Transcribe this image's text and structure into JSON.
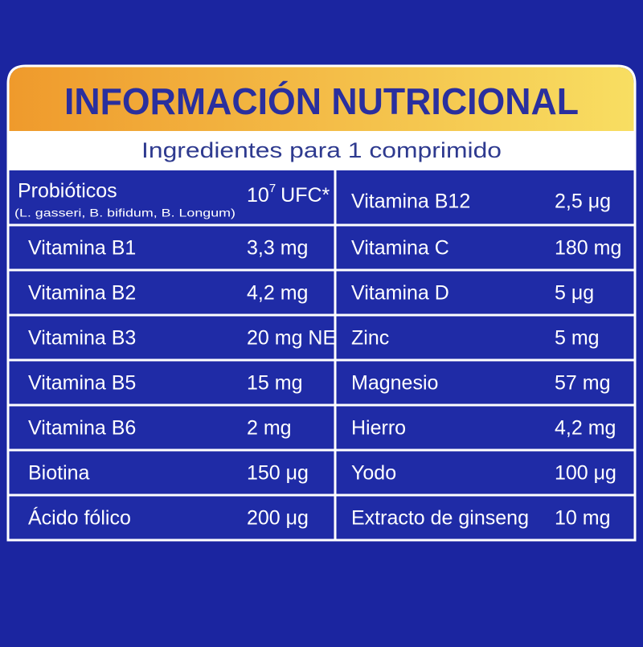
{
  "header": {
    "title": "INFORMACIÓN NUTRICIONAL",
    "subtitle": "Ingredientes para 1 comprimido"
  },
  "table": {
    "rows": [
      {
        "left": {
          "name": "Probióticos",
          "note": "(L. gasseri, B. bifidum, B. Longum)",
          "value": "10",
          "exponent": "7",
          "unit": "UFC*"
        },
        "right": {
          "name": "Vitamina B12",
          "value": "2,5 μg"
        }
      },
      {
        "left": {
          "name": "Vitamina B1",
          "value": "3,3 mg"
        },
        "right": {
          "name": "Vitamina C",
          "value": "180 mg"
        }
      },
      {
        "left": {
          "name": "Vitamina B2",
          "value": "4,2 mg"
        },
        "right": {
          "name": "Vitamina D",
          "value": "5 μg"
        }
      },
      {
        "left": {
          "name": "Vitamina B3",
          "value": "20 mg NE"
        },
        "right": {
          "name": "Zinc",
          "value": "5 mg"
        }
      },
      {
        "left": {
          "name": "Vitamina B5",
          "value": "15 mg"
        },
        "right": {
          "name": "Magnesio",
          "value": "57 mg"
        }
      },
      {
        "left": {
          "name": "Vitamina B6",
          "value": "2 mg"
        },
        "right": {
          "name": "Hierro",
          "value": "4,2 mg"
        }
      },
      {
        "left": {
          "name": "Biotina",
          "value": "150 μg"
        },
        "right": {
          "name": "Yodo",
          "value": "100 μg"
        }
      },
      {
        "left": {
          "name": "Ácido fólico",
          "value": "200 μg"
        },
        "right": {
          "name": "Extracto de ginseng",
          "value": "10 mg"
        }
      }
    ]
  }
}
